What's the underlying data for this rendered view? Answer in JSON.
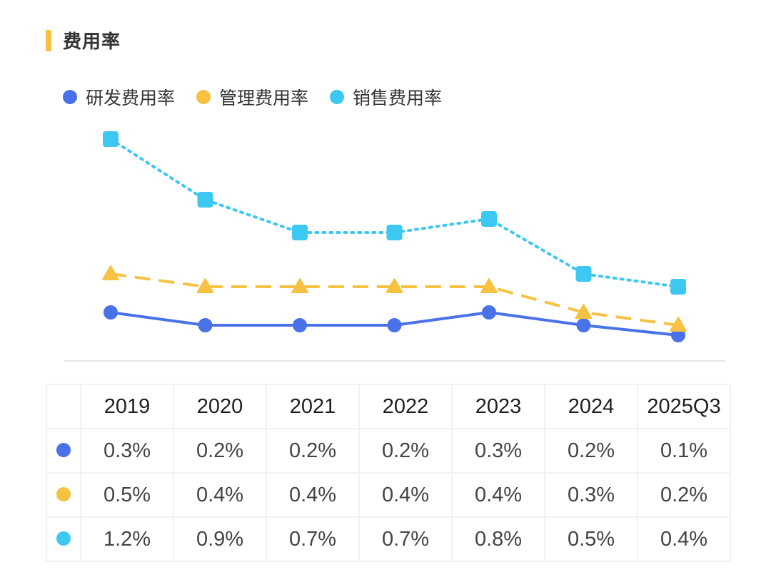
{
  "title": "费用率",
  "colors": {
    "accent": "#f7c242",
    "rd": "#4a72e8",
    "admin": "#f7c242",
    "sales": "#3cc8f0"
  },
  "chart_data": {
    "type": "line",
    "title": "费用率",
    "categories": [
      "2019",
      "2020",
      "2021",
      "2022",
      "2023",
      "2024",
      "2025Q3"
    ],
    "series": [
      {
        "name": "研发费用率",
        "values": [
          0.3,
          0.2,
          0.2,
          0.2,
          0.3,
          0.2,
          0.1
        ],
        "labels": [
          "0.3%",
          "0.2%",
          "0.2%",
          "0.2%",
          "0.3%",
          "0.2%",
          "0.1%"
        ],
        "color": "#4a72e8",
        "marker": "circle",
        "line": "solid"
      },
      {
        "name": "管理费用率",
        "values": [
          0.5,
          0.4,
          0.4,
          0.4,
          0.4,
          0.3,
          0.2
        ],
        "labels": [
          "0.5%",
          "0.4%",
          "0.4%",
          "0.4%",
          "0.4%",
          "0.3%",
          "0.2%"
        ],
        "color": "#f7c242",
        "marker": "triangle",
        "line": "dashed"
      },
      {
        "name": "销售费用率",
        "values": [
          1.2,
          0.9,
          0.7,
          0.7,
          0.8,
          0.5,
          0.4
        ],
        "labels": [
          "1.2%",
          "0.9%",
          "0.7%",
          "0.7%",
          "0.8%",
          "0.5%",
          "0.4%"
        ],
        "color": "#3cc8f0",
        "marker": "square",
        "line": "dotted"
      }
    ],
    "grid": false,
    "legend_position": "top-left"
  }
}
